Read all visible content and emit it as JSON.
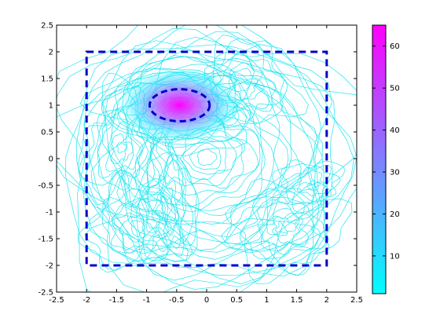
{
  "chart_data": {
    "type": "contour",
    "xlim": [
      -2.5,
      2.5
    ],
    "ylim": [
      -2.5,
      2.5
    ],
    "x_ticks": [
      "-2.5",
      "-2",
      "-1.5",
      "-1",
      "-0.5",
      "0",
      "0.5",
      "1",
      "1.5",
      "2",
      "2.5"
    ],
    "y_ticks": [
      "-2.5",
      "-2",
      "-1.5",
      "-1",
      "-0.5",
      "0",
      "0.5",
      "1",
      "1.5",
      "2",
      "2.5"
    ],
    "colorbar": {
      "range": [
        1,
        65
      ],
      "ticks": [
        "10",
        "20",
        "30",
        "40",
        "50",
        "60"
      ],
      "color_low": "#00ffff",
      "color_high": "#ff00ff"
    },
    "peak": {
      "x": -0.45,
      "y": 1.0,
      "value": 65
    },
    "rectangle": {
      "x": [
        -2,
        2
      ],
      "y": [
        -2,
        2
      ]
    },
    "ellipse": {
      "cx": -0.45,
      "cy": 1.0,
      "rx": 0.5,
      "ry": 0.3
    },
    "annotation_color": "#0000cc"
  }
}
